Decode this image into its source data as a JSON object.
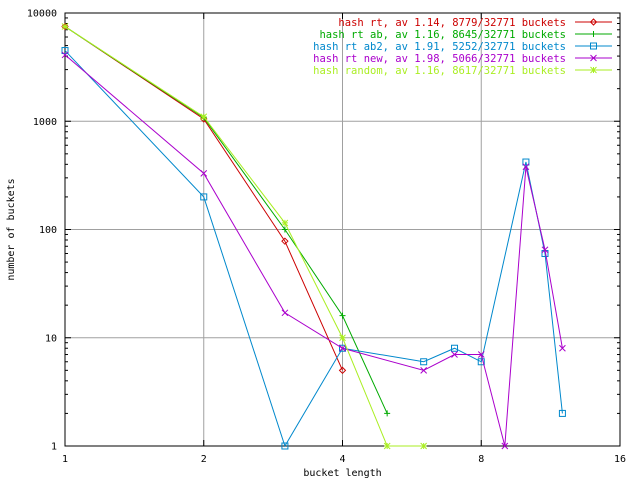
{
  "chart_data": {
    "type": "line",
    "title": "",
    "xlabel": "bucket length",
    "ylabel": "number of buckets",
    "xscale": "log2",
    "yscale": "log10",
    "xlim": [
      1,
      16
    ],
    "ylim": [
      1,
      10000
    ],
    "x_ticks": [
      1,
      2,
      4,
      8,
      16
    ],
    "x_tick_labels": [
      "1",
      "2",
      "4",
      "8",
      "16"
    ],
    "y_ticks": [
      1,
      10,
      100,
      1000,
      10000
    ],
    "y_tick_labels": [
      "1",
      "10",
      "100",
      "1000",
      "10000"
    ],
    "grid": true,
    "legend_position": "top-right",
    "series": [
      {
        "name": "hash rt, av 1.14, 8779/32771 buckets",
        "color": "#cc0000",
        "marker": "diamond",
        "x": [
          1,
          2,
          3,
          4
        ],
        "y": [
          7500,
          1050,
          78,
          5
        ]
      },
      {
        "name": "hash rt ab, av 1.16, 8645/32771 buckets",
        "color": "#00aa00",
        "marker": "plus",
        "x": [
          1,
          2,
          3,
          4,
          5
        ],
        "y": [
          7500,
          1080,
          100,
          16,
          2
        ]
      },
      {
        "name": "hash rt ab2, av 1.91, 5252/32771 buckets",
        "color": "#0088cc",
        "marker": "square",
        "x": [
          1,
          2,
          3,
          4,
          6,
          7,
          8,
          10,
          11,
          12
        ],
        "y": [
          4500,
          200,
          1,
          8,
          6,
          8,
          6,
          420,
          60,
          2
        ]
      },
      {
        "name": "hash rt new, av 1.98, 5066/32771 buckets",
        "color": "#aa00cc",
        "marker": "x",
        "x": [
          1,
          2,
          3,
          4,
          6,
          7,
          8,
          9,
          10,
          11,
          12
        ],
        "y": [
          4100,
          330,
          17,
          8,
          5,
          7,
          7,
          1,
          380,
          65,
          8
        ]
      },
      {
        "name": "hash random, av 1.16, 8617/32771 buckets",
        "color": "#aaee22",
        "marker": "star",
        "x": [
          1,
          2,
          3,
          4,
          5,
          6
        ],
        "y": [
          7500,
          1100,
          115,
          10,
          1,
          1
        ]
      }
    ]
  }
}
